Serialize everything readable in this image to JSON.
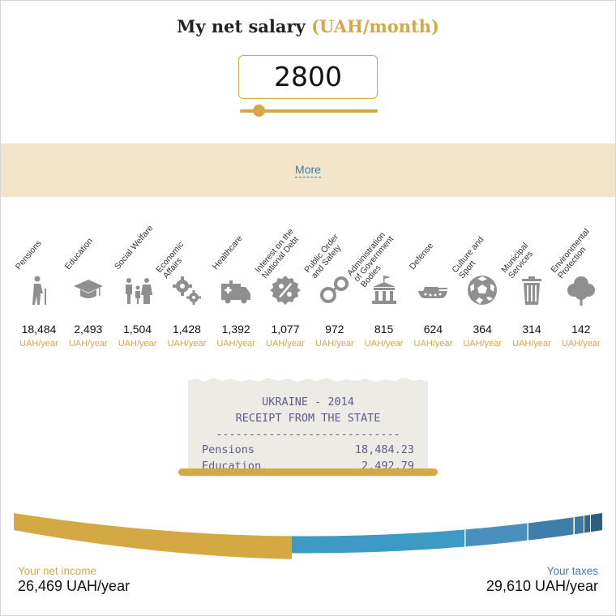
{
  "header": {
    "title": "My net salary",
    "unit": "(UAH/month)"
  },
  "salary": {
    "value": "2800",
    "slider_fraction": 0.14
  },
  "more_link": "More",
  "categories": [
    {
      "label": "Pensions",
      "icon": "pensioner-icon",
      "value": "18,484",
      "unit": "UAH/year"
    },
    {
      "label": "Education",
      "icon": "graduation-cap-icon",
      "value": "2,493",
      "unit": "UAH/year"
    },
    {
      "label": "Social Welfare",
      "icon": "family-icon",
      "value": "1,504",
      "unit": "UAH/year"
    },
    {
      "label": "Economic\nAffairs",
      "icon": "gears-icon",
      "value": "1,428",
      "unit": "UAH/year"
    },
    {
      "label": "Healthcare",
      "icon": "ambulance-icon",
      "value": "1,392",
      "unit": "UAH/year"
    },
    {
      "label": "Interest on the\nNational Debt",
      "icon": "percent-icon",
      "value": "1,077",
      "unit": "UAH/year"
    },
    {
      "label": "Public Order\nand Safety",
      "icon": "handcuffs-icon",
      "value": "972",
      "unit": "UAH/year"
    },
    {
      "label": "Administration\nof Government\nBodies",
      "icon": "government-building-icon",
      "value": "815",
      "unit": "UAH/year"
    },
    {
      "label": "Defense",
      "icon": "tank-icon",
      "value": "624",
      "unit": "UAH/year"
    },
    {
      "label": "Culture and\nSport",
      "icon": "soccer-ball-icon",
      "value": "364",
      "unit": "UAH/year"
    },
    {
      "label": "Municipal\nServices",
      "icon": "trash-bin-icon",
      "value": "314",
      "unit": "UAH/year"
    },
    {
      "label": "Environmental\nProtection",
      "icon": "tree-icon",
      "value": "142",
      "unit": "UAH/year"
    }
  ],
  "receipt": {
    "title_line1": "UKRAINE - 2014",
    "title_line2": "RECEIPT FROM THE STATE",
    "separator": "----------------------------",
    "lines": [
      {
        "label": "Pensions",
        "amount": "18,484.23"
      },
      {
        "label": "Education",
        "amount": "2,492.79"
      }
    ]
  },
  "footer": {
    "net_label": "Your net income",
    "net_value": "26,469 UAH/year",
    "tax_label": "Your taxes",
    "tax_value": "29,610 UAH/year"
  },
  "colors": {
    "accent": "#d4a843",
    "link": "#3a7fa8",
    "icon_gray": "#8f8f8f",
    "receipt_text": "#5f5d85",
    "tax_segments": [
      "#3d9ac4",
      "#4b8fbf",
      "#3f7eab",
      "#3a7aa3",
      "#2f6a8e",
      "#2c6585",
      "#2b5f7c"
    ]
  }
}
